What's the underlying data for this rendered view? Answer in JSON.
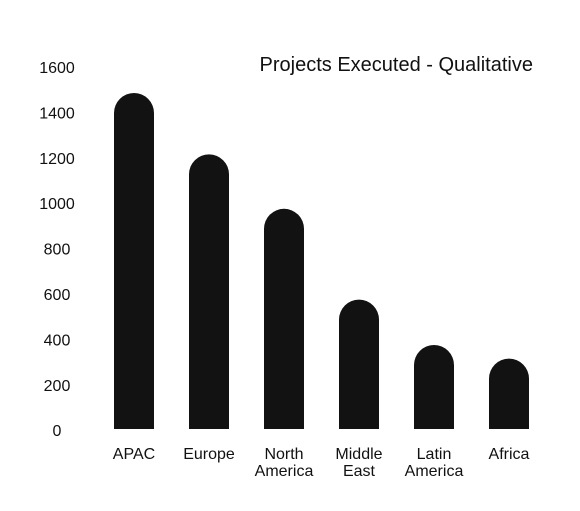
{
  "chart_data": {
    "type": "bar",
    "title": "Projects Executed - Qualitative",
    "xlabel": "",
    "ylabel": "",
    "categories": [
      "APAC",
      "Europe",
      "North America",
      "Middle East",
      "Latin America",
      "Africa"
    ],
    "category_lines": [
      [
        "APAC"
      ],
      [
        "Europe"
      ],
      [
        "North",
        "America"
      ],
      [
        "Middle",
        "East"
      ],
      [
        "Latin",
        "America"
      ],
      [
        "Africa"
      ]
    ],
    "values": [
      1480,
      1210,
      970,
      570,
      370,
      310
    ],
    "ylim": [
      0,
      1600
    ],
    "yticks": [
      0,
      200,
      400,
      600,
      800,
      1000,
      1200,
      1400,
      1600
    ],
    "grid": false,
    "legend": "none",
    "bar_color": "#121212"
  }
}
